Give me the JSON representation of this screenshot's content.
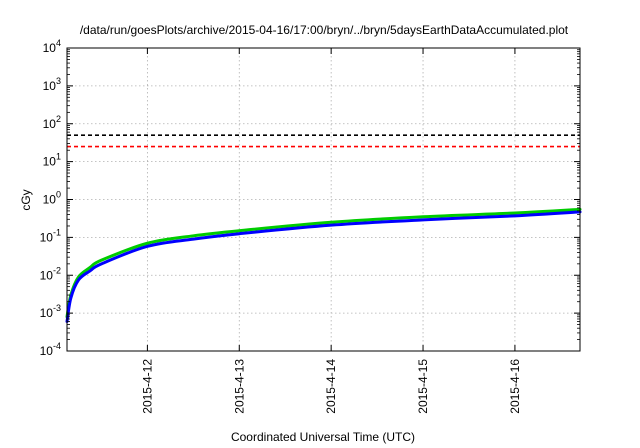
{
  "chart_data": {
    "type": "line",
    "title": "/data/run/goesPlots/archive/2015-04-16/17:00/bryn/../bryn/5daysEarthDataAccumulated.plot",
    "xlabel": "Coordinated Universal Time (UTC)",
    "ylabel": "cGy",
    "yscale": "log",
    "ylim": [
      0.0001,
      10000
    ],
    "xlim": [
      "2015-04-11T03:00",
      "2015-04-16T17:00"
    ],
    "grid": true,
    "x_ticks": [
      {
        "value": "2015-04-12",
        "label": "2015-4-12"
      },
      {
        "value": "2015-04-13",
        "label": "2015-4-13"
      },
      {
        "value": "2015-04-14",
        "label": "2015-4-14"
      },
      {
        "value": "2015-04-15",
        "label": "2015-4-15"
      },
      {
        "value": "2015-04-16",
        "label": "2015-4-16"
      }
    ],
    "y_ticks": [
      {
        "exp": "-4"
      },
      {
        "exp": "-3"
      },
      {
        "exp": "-2"
      },
      {
        "exp": "-1"
      },
      {
        "exp": "0"
      },
      {
        "exp": "1"
      },
      {
        "exp": "2"
      },
      {
        "exp": "3"
      },
      {
        "exp": "4"
      }
    ],
    "reference_lines": [
      {
        "value": 50,
        "color": "#000000",
        "style": "dashed"
      },
      {
        "value": 25,
        "color": "#ff0000",
        "style": "dashed"
      }
    ],
    "series": [
      {
        "color": "#00cc00",
        "x": [
          "2015-04-11T03:00",
          "2015-04-11T04:00",
          "2015-04-11T06:00",
          "2015-04-11T09:00",
          "2015-04-11T12:00",
          "2015-04-12T00:00",
          "2015-04-12T12:00",
          "2015-04-13T00:00",
          "2015-04-14T00:00",
          "2015-04-15T00:00",
          "2015-04-16T00:00",
          "2015-04-16T17:00"
        ],
        "y": [
          0.0008,
          0.003,
          0.009,
          0.016,
          0.025,
          0.07,
          0.11,
          0.15,
          0.25,
          0.35,
          0.44,
          0.55
        ]
      },
      {
        "color": "#0000ff",
        "x": [
          "2015-04-11T03:00",
          "2015-04-11T04:00",
          "2015-04-11T06:00",
          "2015-04-11T09:00",
          "2015-04-11T12:00",
          "2015-04-12T00:00",
          "2015-04-12T12:00",
          "2015-04-13T00:00",
          "2015-04-14T00:00",
          "2015-04-15T00:00",
          "2015-04-16T00:00",
          "2015-04-16T17:00"
        ],
        "y": [
          0.0006,
          0.0025,
          0.0075,
          0.013,
          0.02,
          0.058,
          0.09,
          0.125,
          0.21,
          0.29,
          0.37,
          0.47
        ]
      }
    ]
  }
}
